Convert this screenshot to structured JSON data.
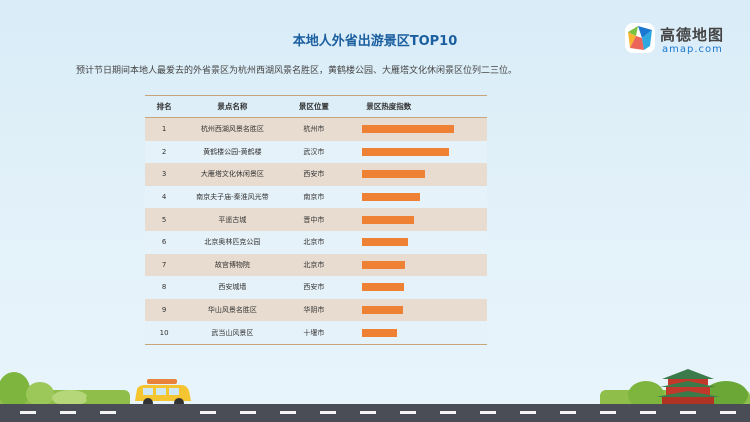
{
  "title": "本地人外省出游景区TOP10",
  "logo": {
    "cn": "高德地图",
    "en": "amap.com"
  },
  "subtitle": "预计节日期间本地人最爱去的外省景区为杭州西湖风景名胜区，黄鹤楼公园、大雁塔文化休闲景区位列二三位。",
  "table": {
    "headers": {
      "rank": "排名",
      "name": "景点名称",
      "location": "景区位置",
      "heat": "景区热度指数"
    },
    "rows": [
      {
        "rank": "1",
        "name": "杭州西湖风景名胜区",
        "location": "杭州市",
        "heat": 1.0
      },
      {
        "rank": "2",
        "name": "黄鹤楼公园-黄鹤楼",
        "location": "武汉市",
        "heat": 0.94
      },
      {
        "rank": "3",
        "name": "大雁塔文化休闲景区",
        "location": "西安市",
        "heat": 0.68
      },
      {
        "rank": "4",
        "name": "南京夫子庙-秦淮风光带",
        "location": "南京市",
        "heat": 0.63
      },
      {
        "rank": "5",
        "name": "平遥古城",
        "location": "晋中市",
        "heat": 0.56
      },
      {
        "rank": "6",
        "name": "北京奥林匹克公园",
        "location": "北京市",
        "heat": 0.5
      },
      {
        "rank": "7",
        "name": "故宫博物院",
        "location": "北京市",
        "heat": 0.46
      },
      {
        "rank": "8",
        "name": "西安城墙",
        "location": "西安市",
        "heat": 0.45
      },
      {
        "rank": "9",
        "name": "华山风景名胜区",
        "location": "华阴市",
        "heat": 0.44
      },
      {
        "rank": "10",
        "name": "武当山风景区",
        "location": "十堰市",
        "heat": 0.38
      }
    ]
  },
  "colors": {
    "bar": "#ee8133",
    "title": "#1b5fa0",
    "row_odd": "#e8dcd0",
    "row_even": "#e6f2f9"
  }
}
